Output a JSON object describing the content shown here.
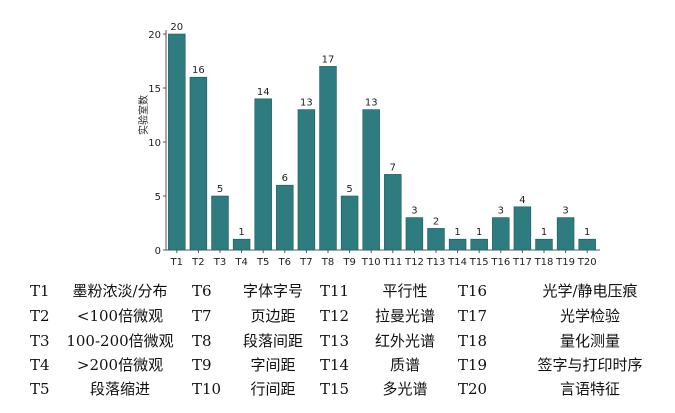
{
  "chart_data": {
    "type": "bar",
    "ylabel": "实验室数",
    "xlabel": "",
    "ylim": [
      0,
      20
    ],
    "yticks": [
      0,
      5,
      10,
      15,
      20
    ],
    "bar_color": "#2e7b80",
    "categories": [
      "T1",
      "T2",
      "T3",
      "T4",
      "T5",
      "T6",
      "T7",
      "T8",
      "T9",
      "T10",
      "T11",
      "T12",
      "T13",
      "T14",
      "T15",
      "T16",
      "T17",
      "T18",
      "T19",
      "T20"
    ],
    "values": [
      20,
      16,
      5,
      1,
      14,
      6,
      13,
      17,
      5,
      13,
      7,
      3,
      2,
      1,
      1,
      3,
      4,
      1,
      3,
      1
    ]
  },
  "legend": [
    {
      "code": "T1",
      "desc": "墨粉浓淡/分布"
    },
    {
      "code": "T2",
      "desc": "<100倍微观"
    },
    {
      "code": "T3",
      "desc": "100-200倍微观"
    },
    {
      "code": "T4",
      "desc": ">200倍微观"
    },
    {
      "code": "T5",
      "desc": "段落缩进"
    },
    {
      "code": "T6",
      "desc": "字体字号"
    },
    {
      "code": "T7",
      "desc": "页边距"
    },
    {
      "code": "T8",
      "desc": "段落间距"
    },
    {
      "code": "T9",
      "desc": "字间距"
    },
    {
      "code": "T10",
      "desc": "行间距"
    },
    {
      "code": "T11",
      "desc": "平行性"
    },
    {
      "code": "T12",
      "desc": "拉曼光谱"
    },
    {
      "code": "T13",
      "desc": "红外光谱"
    },
    {
      "code": "T14",
      "desc": "质谱"
    },
    {
      "code": "T15",
      "desc": "多光谱"
    },
    {
      "code": "T16",
      "desc": "光学/静电压痕"
    },
    {
      "code": "T17",
      "desc": "光学检验"
    },
    {
      "code": "T18",
      "desc": "量化测量"
    },
    {
      "code": "T19",
      "desc": "签字与打印时序"
    },
    {
      "code": "T20",
      "desc": "言语特征"
    }
  ]
}
